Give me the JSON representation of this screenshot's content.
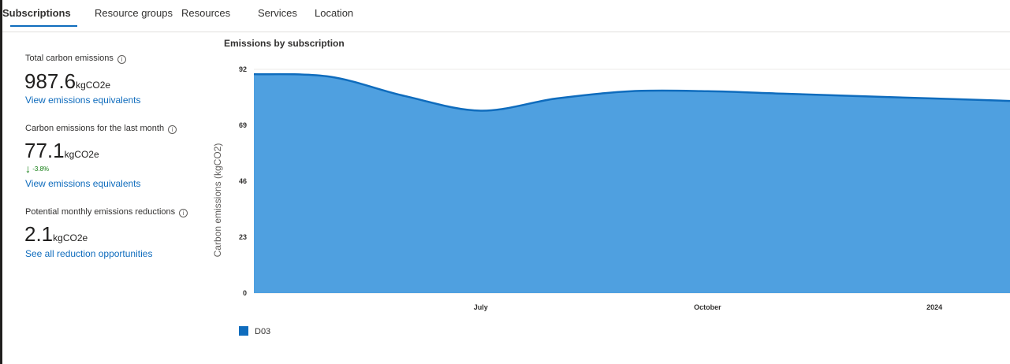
{
  "tabs": [
    {
      "label": "Subscriptions",
      "active": true
    },
    {
      "label": "Resource groups",
      "active": false
    },
    {
      "label": "Resources",
      "active": false
    },
    {
      "label": "Services",
      "active": false
    },
    {
      "label": "Location",
      "active": false
    }
  ],
  "metrics": {
    "total": {
      "label": "Total carbon emissions",
      "value": "987.6",
      "unit": "kgCO2e",
      "link": "View emissions equivalents"
    },
    "last_month": {
      "label": "Carbon emissions for the last month",
      "value": "77.1",
      "unit": "kgCO2e",
      "delta": "-3.8%",
      "delta_direction": "down",
      "link": "View emissions equivalents"
    },
    "reductions": {
      "label": "Potential monthly emissions reductions",
      "value": "2.1",
      "unit": "kgCO2e",
      "link": "See all reduction opportunities"
    }
  },
  "chart_data": {
    "type": "area",
    "title": "Emissions by subscription",
    "ylabel": "Carbon emissions (kgCO2)",
    "xlabel": "",
    "y_ticks": [
      0,
      23,
      46,
      69,
      92
    ],
    "ylim": [
      0,
      92
    ],
    "x_ticks": [
      "July",
      "October",
      "2024"
    ],
    "x": [
      "2023-04",
      "2023-05",
      "2023-06",
      "2023-07",
      "2023-08",
      "2023-09",
      "2023-10",
      "2023-11",
      "2023-12",
      "2024-01",
      "2024-02"
    ],
    "series": [
      {
        "name": "D03",
        "color": "#0f6cbd",
        "values": [
          90,
          89,
          81,
          75,
          80,
          83,
          83,
          82,
          81,
          80,
          79
        ]
      }
    ],
    "grid": true,
    "legend": "bottom-left"
  },
  "colors": {
    "accent": "#0f6cbd",
    "area_fill": "#4fa0e0",
    "positive_delta": "#107c10"
  }
}
